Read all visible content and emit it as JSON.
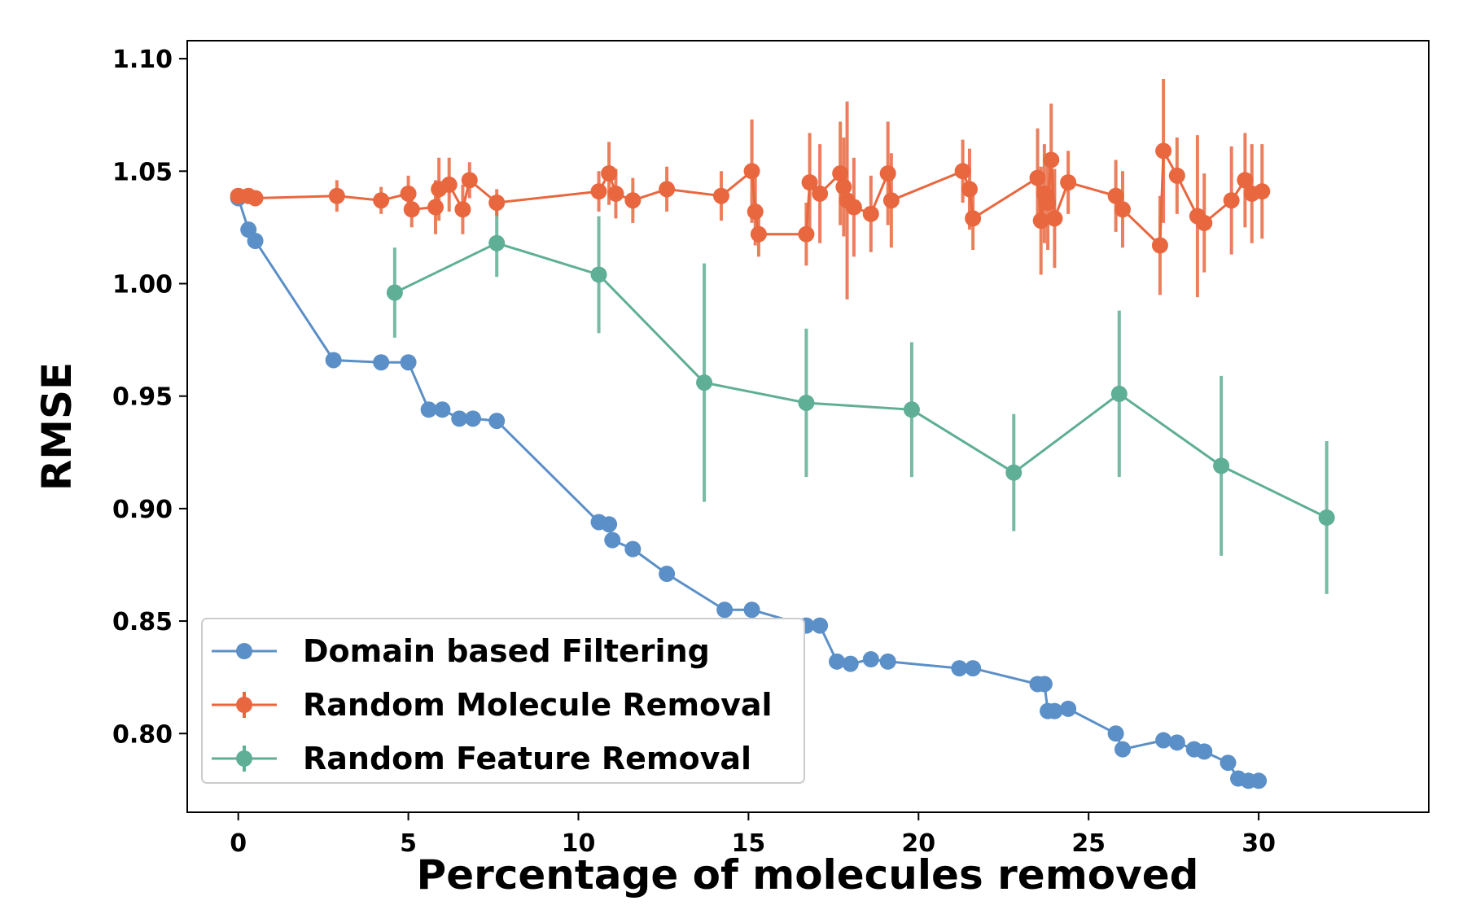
{
  "chart_data": {
    "type": "line",
    "title": "",
    "xlabel": "Percentage of molecules removed",
    "ylabel": "RMSE",
    "xlim": [
      -1.5,
      35
    ],
    "ylim": [
      0.765,
      1.108
    ],
    "xticks": [
      0,
      5,
      10,
      15,
      20,
      25,
      30
    ],
    "xtick_labels": [
      "0",
      "5",
      "10",
      "15",
      "20",
      "25",
      "30"
    ],
    "yticks": [
      0.8,
      0.85,
      0.9,
      0.95,
      1.0,
      1.05,
      1.1
    ],
    "ytick_labels": [
      "0.80",
      "0.85",
      "0.90",
      "0.95",
      "1.00",
      "1.05",
      "1.10"
    ],
    "grid": false,
    "legend_position": "lower-left",
    "series": [
      {
        "name": "Domain based Filtering",
        "color": "#5b8fc7",
        "x": [
          0.0,
          0.3,
          0.5,
          2.8,
          4.2,
          5.0,
          5.6,
          6.0,
          6.5,
          6.9,
          7.6,
          10.6,
          10.9,
          11.0,
          11.6,
          12.6,
          14.3,
          15.1,
          16.7,
          17.1,
          17.6,
          18.0,
          18.6,
          19.1,
          21.2,
          21.6,
          23.5,
          23.7,
          23.8,
          24.0,
          24.4,
          25.8,
          26.0,
          27.2,
          27.6,
          28.1,
          28.4,
          29.1,
          29.4,
          29.7,
          30.0
        ],
        "y": [
          1.038,
          1.024,
          1.019,
          0.966,
          0.965,
          0.965,
          0.944,
          0.944,
          0.94,
          0.94,
          0.939,
          0.894,
          0.893,
          0.886,
          0.882,
          0.871,
          0.855,
          0.855,
          0.848,
          0.848,
          0.832,
          0.831,
          0.833,
          0.832,
          0.829,
          0.829,
          0.822,
          0.822,
          0.81,
          0.81,
          0.811,
          0.8,
          0.793,
          0.797,
          0.796,
          0.793,
          0.792,
          0.787,
          0.78,
          0.779,
          0.779
        ]
      },
      {
        "name": "Random Molecule Removal",
        "color": "#e8673f",
        "x": [
          0.0,
          0.3,
          0.5,
          2.9,
          4.2,
          5.0,
          5.1,
          5.8,
          5.9,
          6.2,
          6.6,
          6.8,
          7.6,
          10.6,
          10.9,
          11.1,
          11.6,
          12.6,
          14.2,
          15.1,
          15.2,
          15.3,
          16.7,
          16.8,
          17.1,
          17.7,
          17.8,
          17.9,
          18.1,
          18.6,
          19.1,
          19.2,
          21.3,
          21.5,
          21.6,
          23.5,
          23.6,
          23.7,
          23.8,
          23.9,
          24.0,
          24.4,
          25.8,
          26.0,
          27.1,
          27.2,
          27.6,
          28.2,
          28.4,
          29.2,
          29.6,
          29.8,
          30.1
        ],
        "y": [
          1.039,
          1.039,
          1.038,
          1.039,
          1.037,
          1.04,
          1.033,
          1.034,
          1.042,
          1.044,
          1.033,
          1.046,
          1.036,
          1.041,
          1.049,
          1.04,
          1.037,
          1.042,
          1.039,
          1.05,
          1.032,
          1.022,
          1.022,
          1.045,
          1.04,
          1.049,
          1.043,
          1.037,
          1.034,
          1.031,
          1.049,
          1.037,
          1.05,
          1.042,
          1.029,
          1.047,
          1.028,
          1.04,
          1.036,
          1.055,
          1.029,
          1.045,
          1.039,
          1.033,
          1.017,
          1.059,
          1.048,
          1.03,
          1.027,
          1.037,
          1.046,
          1.04,
          1.041
        ],
        "errors": [
          0.002,
          0.002,
          0.002,
          0.007,
          0.006,
          0.008,
          0.008,
          0.012,
          0.014,
          0.012,
          0.011,
          0.008,
          0.006,
          0.009,
          0.014,
          0.011,
          0.01,
          0.01,
          0.011,
          0.023,
          0.015,
          0.01,
          0.014,
          0.022,
          0.022,
          0.023,
          0.022,
          0.044,
          0.022,
          0.017,
          0.023,
          0.021,
          0.014,
          0.018,
          0.014,
          0.022,
          0.024,
          0.022,
          0.021,
          0.025,
          0.022,
          0.014,
          0.016,
          0.017,
          0.022,
          0.032,
          0.017,
          0.036,
          0.022,
          0.024,
          0.021,
          0.022,
          0.021
        ]
      },
      {
        "name": "Random Feature Removal",
        "color": "#5fae96",
        "x": [
          4.6,
          7.6,
          10.6,
          13.7,
          16.7,
          19.8,
          22.8,
          25.9,
          28.9,
          32.0
        ],
        "y": [
          0.996,
          1.018,
          1.004,
          0.956,
          0.947,
          0.944,
          0.916,
          0.951,
          0.919,
          0.896
        ],
        "errors": [
          0.02,
          0.015,
          0.026,
          0.053,
          0.033,
          0.03,
          0.026,
          0.037,
          0.04,
          0.034
        ]
      }
    ]
  }
}
